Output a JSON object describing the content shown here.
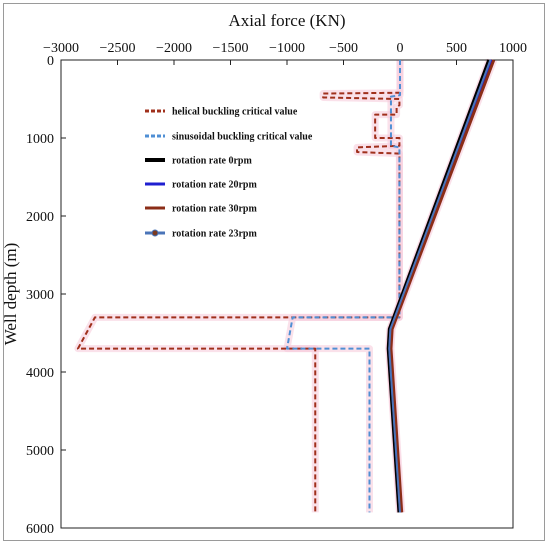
{
  "chart_data": {
    "type": "line",
    "xlabel": "Axial force (KN)",
    "ylabel": "Well depth (m)",
    "xlim": [
      -3000,
      1000
    ],
    "ylim": [
      0,
      6000
    ],
    "y_inverted": true,
    "x_axis_position": "top",
    "grid": false,
    "legend_placement": "upper-left inside plot",
    "xticks": [
      "−3000",
      "−2500",
      "−2000",
      "−1500",
      "−1000",
      "−500",
      "0",
      "500",
      "1000"
    ],
    "xtick_values": [
      -3000,
      -2500,
      -2000,
      -1500,
      -1000,
      -500,
      0,
      500,
      1000
    ],
    "yticks": [
      "0",
      "1000",
      "2000",
      "3000",
      "4000",
      "5000",
      "6000"
    ],
    "ytick_values": [
      0,
      1000,
      2000,
      3000,
      4000,
      5000,
      6000
    ],
    "series": [
      {
        "name": "helical buckling critical value",
        "color": "#a0301c",
        "style": "dashed",
        "points": [
          [
            0,
            0
          ],
          [
            0,
            400
          ],
          [
            -5,
            420
          ],
          [
            -680,
            430
          ],
          [
            -680,
            480
          ],
          [
            -5,
            500
          ],
          [
            -5,
            580
          ],
          [
            -30,
            600
          ],
          [
            -30,
            700
          ],
          [
            -220,
            700
          ],
          [
            -220,
            1000
          ],
          [
            -5,
            1000
          ],
          [
            -5,
            1100
          ],
          [
            -380,
            1120
          ],
          [
            -380,
            1180
          ],
          [
            -5,
            1200
          ],
          [
            -5,
            3300
          ],
          [
            -2700,
            3300
          ],
          [
            -2850,
            3700
          ],
          [
            -750,
            3700
          ],
          [
            -750,
            5800
          ]
        ]
      },
      {
        "name": "sinusoidal buckling critical value",
        "color": "#4f8fd4",
        "style": "dashed",
        "points": [
          [
            0,
            0
          ],
          [
            0,
            450
          ],
          [
            -80,
            470
          ],
          [
            -80,
            1100
          ],
          [
            -5,
            1120
          ],
          [
            -5,
            3300
          ],
          [
            -950,
            3300
          ],
          [
            -1000,
            3700
          ],
          [
            -270,
            3700
          ],
          [
            -270,
            5800
          ]
        ]
      },
      {
        "name": "rotation rate 0rpm",
        "color": "#000000",
        "style": "solid",
        "points": [
          [
            790,
            0
          ],
          [
            -90,
            3450
          ],
          [
            -100,
            3700
          ],
          [
            -5,
            5800
          ]
        ]
      },
      {
        "name": "rotation rate 20rpm",
        "color": "#1f1fd0",
        "style": "solid",
        "points": [
          [
            810,
            0
          ],
          [
            -80,
            3450
          ],
          [
            -90,
            3700
          ],
          [
            5,
            5800
          ]
        ]
      },
      {
        "name": "rotation rate 30rpm",
        "color": "#8b2d17",
        "style": "solid",
        "points": [
          [
            830,
            0
          ],
          [
            -70,
            3450
          ],
          [
            -80,
            3700
          ],
          [
            15,
            5800
          ]
        ]
      },
      {
        "name": "rotation rate 23rpm",
        "color": "#4a74b8",
        "style": "solid-marker",
        "points": [
          [
            800,
            0
          ],
          [
            -85,
            3450
          ],
          [
            -95,
            3700
          ],
          [
            0,
            5800
          ]
        ]
      }
    ]
  }
}
